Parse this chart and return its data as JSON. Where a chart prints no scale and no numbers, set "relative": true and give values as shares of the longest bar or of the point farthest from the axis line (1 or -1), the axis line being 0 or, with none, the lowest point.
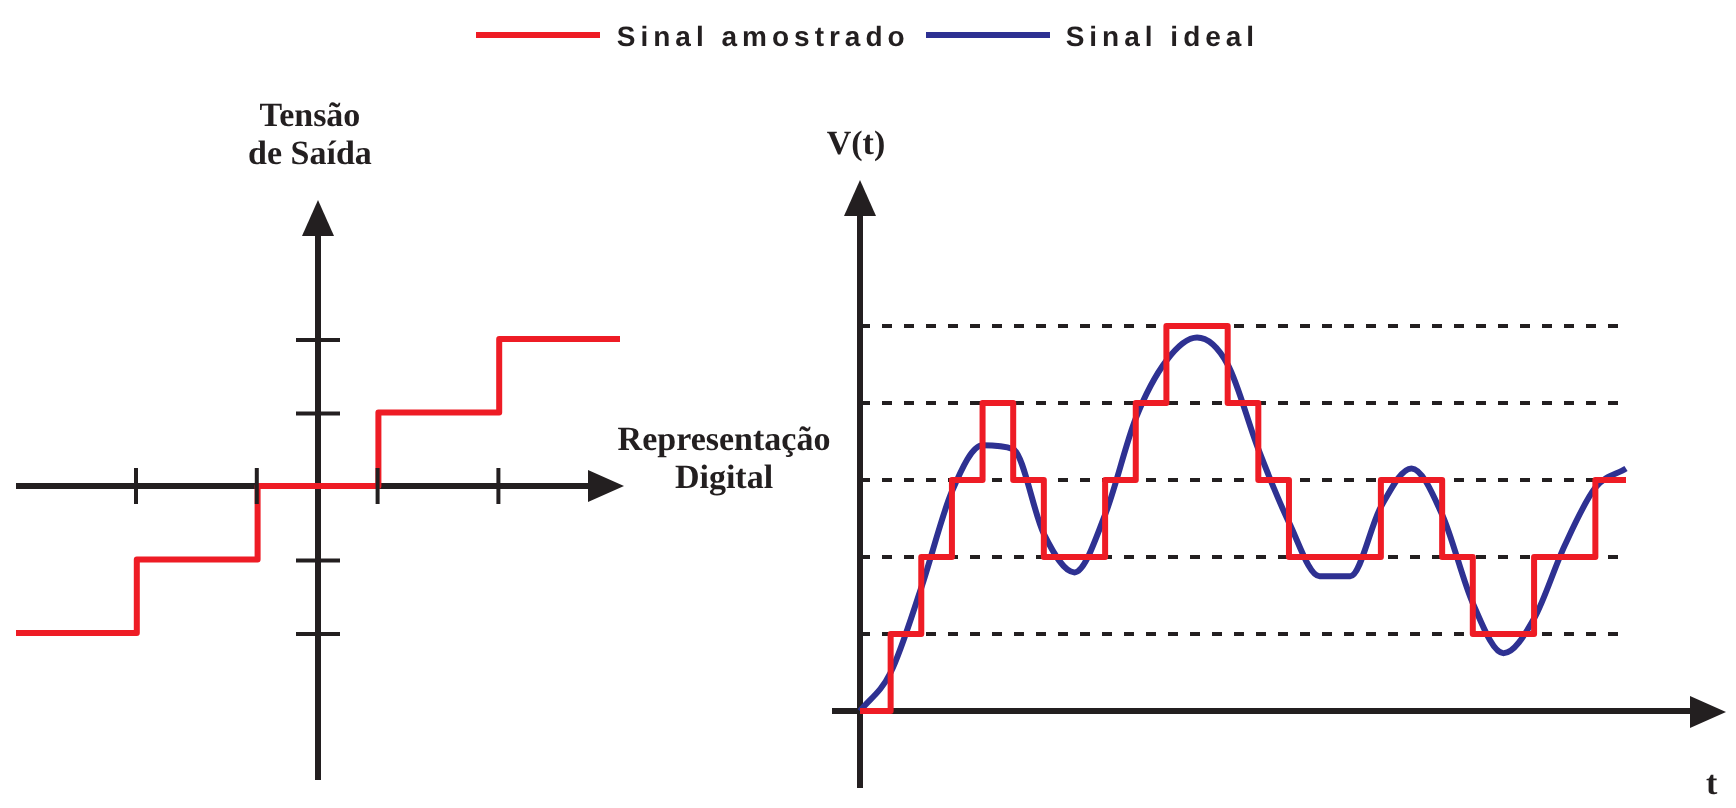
{
  "chart_data": [
    {
      "type": "step",
      "relative": true,
      "categories": [
        null,
        null,
        null,
        null,
        null,
        null
      ],
      "color": "#ee1c25",
      "values": [
        -1,
        -0.5,
        0,
        0.5,
        1,
        1
      ],
      "xlabel": "Representação\nDigital",
      "ylabel": "Tensão\nde Saída",
      "marker": "none"
    },
    {
      "type": "step",
      "relative": true,
      "categories": [
        null,
        null,
        null,
        null,
        null,
        null,
        null,
        null,
        null,
        null,
        null,
        null,
        null,
        null,
        null,
        null,
        null,
        null,
        null,
        null,
        null,
        null,
        null,
        null,
        null,
        null
      ],
      "xlabel": "t",
      "ylabel": "V(t)",
      "legend": "top",
      "marker": "none",
      "series": [
        {
          "name": "Sinal amostrado",
          "type": "step",
          "color": "#ee1c25",
          "values": [
            0,
            0.2,
            0.4,
            0.6,
            0.8,
            0.6,
            0.4,
            0.4,
            0.6,
            0.8,
            1,
            1,
            0.8,
            0.6,
            0.4,
            0.4,
            0.4,
            0.6,
            0.6,
            0.4,
            0.2,
            0.2,
            0.4,
            0.4,
            0.6,
            0.6
          ]
        },
        {
          "name": "Sinal ideal",
          "type": "line",
          "color": "#2e3192",
          "values": [
            0,
            0.1,
            0.32,
            0.57,
            0.69,
            0.68,
            0.46,
            0.36,
            0.51,
            0.76,
            0.91,
            0.97,
            0.9,
            0.68,
            0.49,
            0.35,
            0.35,
            0.53,
            0.63,
            0.51,
            0.28,
            0.15,
            0.24,
            0.43,
            0.58,
            0.63
          ]
        }
      ],
      "ref_lines": [
        {
          "axis": "y",
          "value": 0.2,
          "color": "#231f20",
          "line_style": "dashed"
        },
        {
          "axis": "y",
          "value": 0.4,
          "color": "#231f20",
          "line_style": "dashed"
        },
        {
          "axis": "y",
          "value": 0.6,
          "color": "#231f20",
          "line_style": "dashed"
        },
        {
          "axis": "y",
          "value": 0.8,
          "color": "#231f20",
          "line_style": "dashed"
        },
        {
          "axis": "y",
          "value": 1,
          "color": "#231f20",
          "line_style": "dashed"
        }
      ]
    }
  ]
}
